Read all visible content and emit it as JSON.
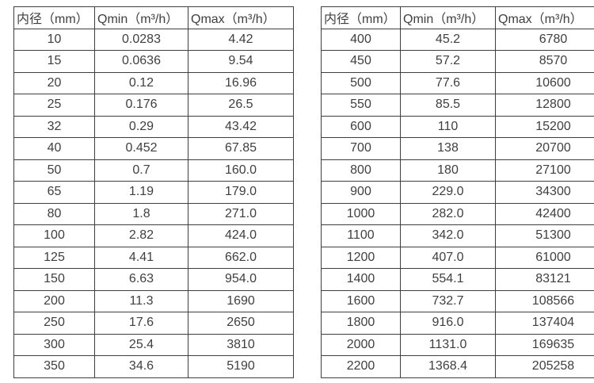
{
  "colors": {
    "background": "#ffffff",
    "border": "#3f3f3f",
    "text": "#3f3f3f"
  },
  "chart_data": [
    {
      "type": "table",
      "title": "",
      "headers": [
        "内径（mm）",
        "Qmin（m³/h）",
        "Qmax（m³/h）"
      ],
      "rows": [
        [
          "10",
          "0.0283",
          "4.42"
        ],
        [
          "15",
          "0.0636",
          "9.54"
        ],
        [
          "20",
          "0.12",
          "16.96"
        ],
        [
          "25",
          "0.176",
          "26.5"
        ],
        [
          "32",
          "0.29",
          "43.42"
        ],
        [
          "40",
          "0.452",
          "67.85"
        ],
        [
          "50",
          "0.7",
          "160.0"
        ],
        [
          "65",
          "1.19",
          "179.0"
        ],
        [
          "80",
          "1.8",
          "271.0"
        ],
        [
          "100",
          "2.82",
          "424.0"
        ],
        [
          "125",
          "4.41",
          "662.0"
        ],
        [
          "150",
          "6.63",
          "954.0"
        ],
        [
          "200",
          "11.3",
          "1690"
        ],
        [
          "250",
          "17.6",
          "2650"
        ],
        [
          "300",
          "25.4",
          "3810"
        ],
        [
          "350",
          "34.6",
          "5190"
        ]
      ]
    },
    {
      "type": "table",
      "title": "",
      "headers": [
        "内径（mm）",
        "Qmin（m³/h）",
        "Qmax（m³/h）"
      ],
      "rows": [
        [
          "400",
          "45.2",
          "6780"
        ],
        [
          "450",
          "57.2",
          "8570"
        ],
        [
          "500",
          "77.6",
          "10600"
        ],
        [
          "550",
          "85.5",
          "12800"
        ],
        [
          "600",
          "110",
          "15200"
        ],
        [
          "700",
          "138",
          "20700"
        ],
        [
          "800",
          "180",
          "27100"
        ],
        [
          "900",
          "229.0",
          "34300"
        ],
        [
          "1000",
          "282.0",
          "42400"
        ],
        [
          "1100",
          "342.0",
          "51300"
        ],
        [
          "1200",
          "407.0",
          "61000"
        ],
        [
          "1400",
          "554.1",
          "83121"
        ],
        [
          "1600",
          "732.7",
          "108566"
        ],
        [
          "1800",
          "916.0",
          "137404"
        ],
        [
          "2000",
          "1131.0",
          "169635"
        ],
        [
          "2200",
          "1368.4",
          "205258"
        ]
      ]
    }
  ]
}
